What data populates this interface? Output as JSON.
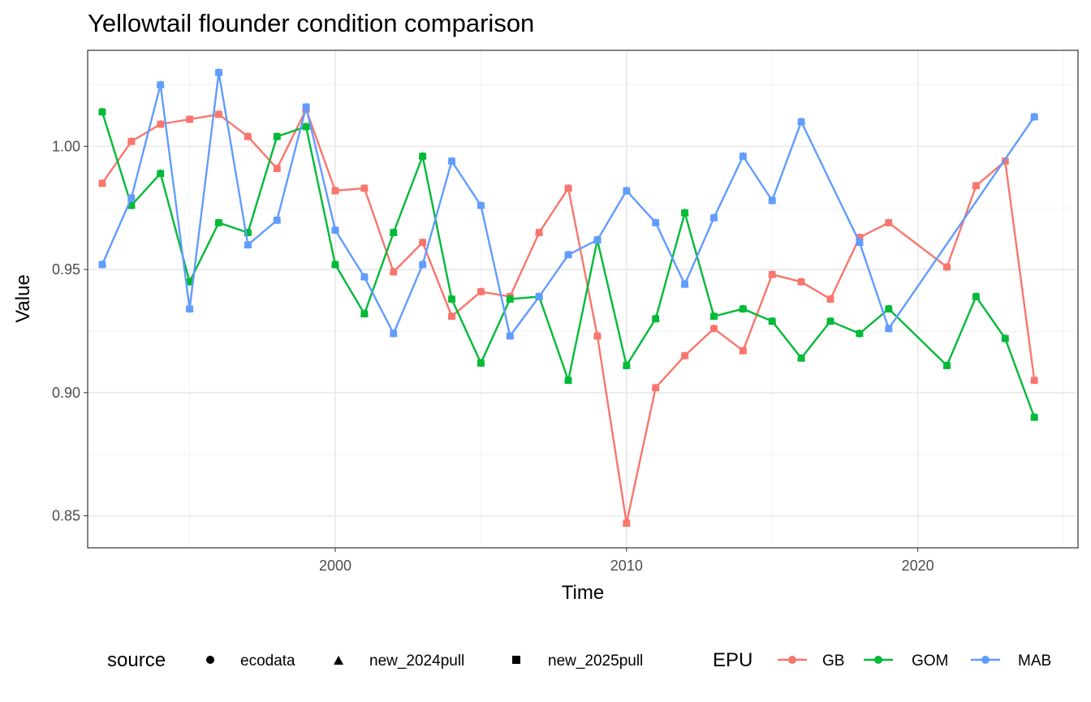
{
  "chart_data": {
    "type": "line",
    "title": "Yellowtail flounder condition comparison",
    "xlabel": "Time",
    "ylabel": "Value",
    "xlim": [
      1991.5,
      2025.5
    ],
    "ylim": [
      0.837,
      1.039
    ],
    "x_ticks": [
      2000,
      2010,
      2020
    ],
    "y_ticks": [
      0.85,
      0.9,
      0.95,
      1.0
    ],
    "y_tick_labels": [
      "0.85",
      "0.90",
      "0.95",
      "1.00"
    ],
    "grid": true,
    "legend_position": "bottom",
    "legends": {
      "source": {
        "title": "source",
        "items": [
          {
            "label": "ecodata",
            "shape": "circle"
          },
          {
            "label": "new_2024pull",
            "shape": "triangle"
          },
          {
            "label": "new_2025pull",
            "shape": "square"
          }
        ]
      },
      "epu": {
        "title": "EPU",
        "items": [
          {
            "label": "GB",
            "color": "#F8766D"
          },
          {
            "label": "GOM",
            "color": "#00BA38"
          },
          {
            "label": "MAB",
            "color": "#619CFF"
          }
        ]
      }
    },
    "series": [
      {
        "name": "GB",
        "color": "#F8766D",
        "points": [
          [
            1992,
            0.985
          ],
          [
            1993,
            1.002
          ],
          [
            1994,
            1.009
          ],
          [
            1995,
            1.011
          ],
          [
            1996,
            1.013
          ],
          [
            1997,
            1.004
          ],
          [
            1998,
            0.991
          ],
          [
            1999,
            1.015
          ],
          [
            2000,
            0.982
          ],
          [
            2001,
            0.983
          ],
          [
            2002,
            0.949
          ],
          [
            2003,
            0.961
          ],
          [
            2004,
            0.931
          ],
          [
            2005,
            0.941
          ],
          [
            2006,
            0.939
          ],
          [
            2007,
            0.965
          ],
          [
            2008,
            0.983
          ],
          [
            2009,
            0.923
          ],
          [
            2010,
            0.847
          ],
          [
            2011,
            0.902
          ],
          [
            2012,
            0.915
          ],
          [
            2013,
            0.926
          ],
          [
            2014,
            0.917
          ],
          [
            2015,
            0.948
          ],
          [
            2016,
            0.945
          ],
          [
            2017,
            0.938
          ],
          [
            2018,
            0.963
          ],
          [
            2019,
            0.969
          ],
          [
            2021,
            0.951
          ],
          [
            2022,
            0.984
          ],
          [
            2023,
            0.994
          ],
          [
            2024,
            0.905
          ]
        ]
      },
      {
        "name": "GOM",
        "color": "#00BA38",
        "points": [
          [
            1992,
            1.014
          ],
          [
            1993,
            0.976
          ],
          [
            1994,
            0.989
          ],
          [
            1995,
            0.945
          ],
          [
            1996,
            0.969
          ],
          [
            1997,
            0.965
          ],
          [
            1998,
            1.004
          ],
          [
            1999,
            1.008
          ],
          [
            2000,
            0.952
          ],
          [
            2001,
            0.932
          ],
          [
            2002,
            0.965
          ],
          [
            2003,
            0.996
          ],
          [
            2004,
            0.938
          ],
          [
            2005,
            0.912
          ],
          [
            2006,
            0.938
          ],
          [
            2007,
            0.939
          ],
          [
            2008,
            0.905
          ],
          [
            2009,
            0.962
          ],
          [
            2010,
            0.911
          ],
          [
            2011,
            0.93
          ],
          [
            2012,
            0.973
          ],
          [
            2013,
            0.931
          ],
          [
            2014,
            0.934
          ],
          [
            2015,
            0.929
          ],
          [
            2016,
            0.914
          ],
          [
            2017,
            0.929
          ],
          [
            2018,
            0.924
          ],
          [
            2019,
            0.934
          ],
          [
            2021,
            0.911
          ],
          [
            2022,
            0.939
          ],
          [
            2023,
            0.922
          ],
          [
            2024,
            0.89
          ]
        ]
      },
      {
        "name": "MAB",
        "color": "#619CFF",
        "points": [
          [
            1992,
            0.952
          ],
          [
            1993,
            0.979
          ],
          [
            1994,
            1.025
          ],
          [
            1995,
            0.934
          ],
          [
            1996,
            1.03
          ],
          [
            1997,
            0.96
          ],
          [
            1998,
            0.97
          ],
          [
            1999,
            1.016
          ],
          [
            2000,
            0.966
          ],
          [
            2001,
            0.947
          ],
          [
            2002,
            0.924
          ],
          [
            2003,
            0.952
          ],
          [
            2004,
            0.994
          ],
          [
            2005,
            0.976
          ],
          [
            2006,
            0.923
          ],
          [
            2007,
            0.939
          ],
          [
            2008,
            0.956
          ],
          [
            2009,
            0.962
          ],
          [
            2010,
            0.982
          ],
          [
            2011,
            0.969
          ],
          [
            2012,
            0.944
          ],
          [
            2013,
            0.971
          ],
          [
            2014,
            0.996
          ],
          [
            2015,
            0.978
          ],
          [
            2016,
            1.01
          ],
          [
            2018,
            0.961
          ],
          [
            2019,
            0.926
          ],
          [
            2024,
            1.012
          ]
        ]
      }
    ]
  }
}
